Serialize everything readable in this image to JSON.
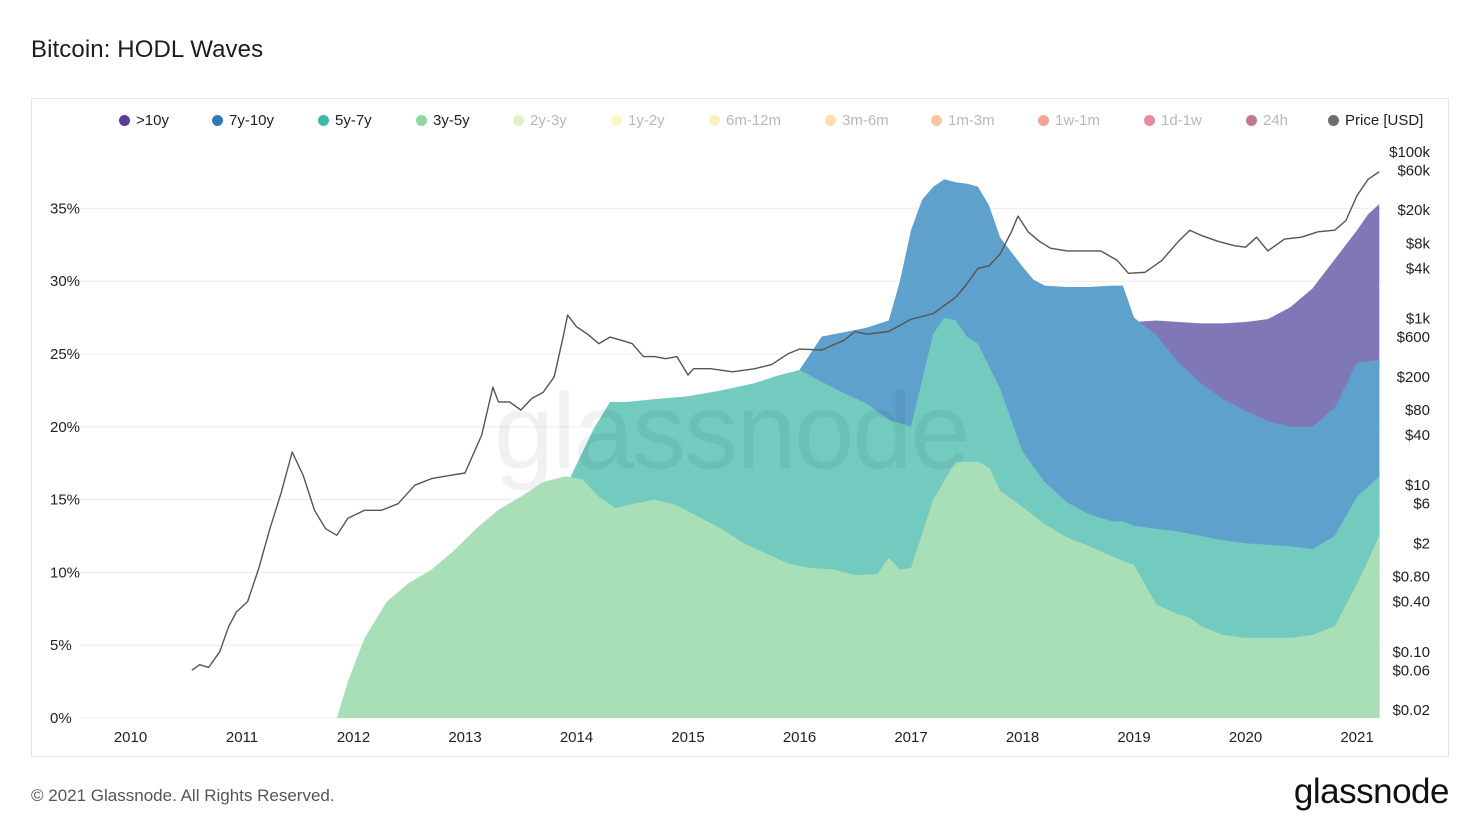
{
  "title": "Bitcoin: HODL Waves",
  "footer": {
    "copyright": "© 2021 Glassnode. All Rights Reserved.",
    "logo": "glassnode"
  },
  "watermark": "glassnode",
  "legend": [
    {
      "label": ">10y",
      "color": "#5b3c98",
      "active": true
    },
    {
      "label": "7y-10y",
      "color": "#2e7bb6",
      "active": true
    },
    {
      "label": "5y-7y",
      "color": "#3fb8a8",
      "active": true
    },
    {
      "label": "3y-5y",
      "color": "#8fd8a0",
      "active": true
    },
    {
      "label": "2y-3y",
      "color": "#c6e88e",
      "active": false
    },
    {
      "label": "1y-2y",
      "color": "#f6f39a",
      "active": false
    },
    {
      "label": "6m-12m",
      "color": "#f9e48e",
      "active": false
    },
    {
      "label": "3m-6m",
      "color": "#f7c56c",
      "active": false
    },
    {
      "label": "1m-3m",
      "color": "#f29955",
      "active": false
    },
    {
      "label": "1w-1m",
      "color": "#e4593f",
      "active": false
    },
    {
      "label": "1d-1w",
      "color": "#cf2d4f",
      "active": false
    },
    {
      "label": "24h",
      "color": "#8e0b2b",
      "active": false
    },
    {
      "label": "Price [USD]",
      "color": "#6e6e6e",
      "active": true
    }
  ],
  "chart_data": {
    "type": "area",
    "title": "Bitcoin: HODL Waves",
    "stacked": true,
    "x_ticks": [
      "2010",
      "2011",
      "2012",
      "2013",
      "2014",
      "2015",
      "2016",
      "2017",
      "2018",
      "2019",
      "2020",
      "2021"
    ],
    "y_ticks": [
      "0%",
      "5%",
      "10%",
      "15%",
      "20%",
      "25%",
      "30%",
      "35%"
    ],
    "ylim": [
      0,
      38
    ],
    "xlim": [
      2009.8,
      2021.25
    ],
    "y2_ticks": [
      "$100k",
      "$60k",
      "$20k",
      "$8k",
      "$4k",
      "$1k",
      "$600",
      "$200",
      "$80",
      "$40",
      "$10",
      "$6",
      "$2",
      "$0.80",
      "$0.40",
      "$0.10",
      "$0.06",
      "$0.02"
    ],
    "y2_values": [
      100000,
      60000,
      20000,
      8000,
      4000,
      1000,
      600,
      200,
      80,
      40,
      10,
      6,
      2,
      0.8,
      0.4,
      0.1,
      0.06,
      0.02
    ],
    "y2_scale": "log",
    "y2lim": [
      0.02,
      100000
    ],
    "grid": true,
    "legend_position": "top",
    "series": [
      {
        "name": "3y-5y",
        "color": "#a9dfb7",
        "x": [
          2011.85,
          2011.95,
          2012.1,
          2012.3,
          2012.5,
          2012.7,
          2012.9,
          2013.1,
          2013.3,
          2013.5,
          2013.7,
          2013.9,
          2014.05,
          2014.2,
          2014.35,
          2014.5,
          2014.7,
          2014.9,
          2015.1,
          2015.3,
          2015.5,
          2015.7,
          2015.9,
          2016.1,
          2016.3,
          2016.5,
          2016.7,
          2016.8,
          2016.9,
          2017.0,
          2017.2,
          2017.4,
          2017.6,
          2017.7,
          2017.8,
          2018.0,
          2018.2,
          2018.4,
          2018.6,
          2018.8,
          2018.9,
          2019.0,
          2019.2,
          2019.4,
          2019.5,
          2019.6,
          2019.8,
          2020.0,
          2020.2,
          2020.4,
          2020.6,
          2020.8,
          2021.0,
          2021.2
        ],
        "values": [
          0,
          2.5,
          5.5,
          8,
          9.3,
          10.2,
          11.5,
          13,
          14.3,
          15.2,
          16.2,
          16.6,
          16.4,
          15.2,
          14.4,
          14.7,
          15,
          14.6,
          13.8,
          13,
          12,
          11.3,
          10.6,
          10.3,
          10.2,
          9.8,
          9.9,
          11,
          10.2,
          10.3,
          15,
          17.6,
          17.6,
          17.2,
          15.6,
          14.5,
          13.3,
          12.4,
          11.8,
          11.1,
          10.8,
          10.5,
          7.8,
          7.1,
          6.9,
          6.3,
          5.7,
          5.5,
          5.5,
          5.5,
          5.7,
          6.3,
          9.2,
          12.5
        ]
      },
      {
        "name": "5y-7y",
        "color": "#73cbbf",
        "x": [
          2013.95,
          2014.15,
          2014.3,
          2014.45,
          2014.7,
          2015.0,
          2015.3,
          2015.6,
          2015.8,
          2016.0,
          2016.2,
          2016.4,
          2016.6,
          2016.8,
          2017.0,
          2017.1,
          2017.2,
          2017.3,
          2017.4,
          2017.5,
          2017.6,
          2017.8,
          2018.0,
          2018.2,
          2018.4,
          2018.6,
          2018.8,
          2018.9,
          2019.0,
          2019.2,
          2019.4,
          2019.6,
          2019.8,
          2020.0,
          2020.2,
          2020.4,
          2020.6,
          2020.8,
          2021.0,
          2021.2
        ],
        "values": [
          16.6,
          19.8,
          21.7,
          21.7,
          21.9,
          22.1,
          22.5,
          23.0,
          23.5,
          23.9,
          23.1,
          22.3,
          21.6,
          20.5,
          20.0,
          23.2,
          26.4,
          27.5,
          27.3,
          26.2,
          25.7,
          22.6,
          18.3,
          16.2,
          14.8,
          14.0,
          13.5,
          13.5,
          13.2,
          13.0,
          12.8,
          12.5,
          12.2,
          12.0,
          11.9,
          11.8,
          11.6,
          12.5,
          15.2,
          16.6
        ]
      },
      {
        "name": "7y-10y",
        "color": "#5ea1cc",
        "x": [
          2016.0,
          2016.2,
          2016.4,
          2016.6,
          2016.8,
          2016.9,
          2017.0,
          2017.1,
          2017.2,
          2017.3,
          2017.4,
          2017.5,
          2017.6,
          2017.7,
          2017.8,
          2018.0,
          2018.1,
          2018.2,
          2018.4,
          2018.6,
          2018.8,
          2018.9,
          2019.0,
          2019.2,
          2019.4,
          2019.6,
          2019.8,
          2020.0,
          2020.2,
          2020.4,
          2020.6,
          2020.8,
          2021.0,
          2021.2
        ],
        "values": [
          23.9,
          26.2,
          26.5,
          26.8,
          27.3,
          30.0,
          33.5,
          35.6,
          36.5,
          37.0,
          36.8,
          36.7,
          36.5,
          35.2,
          33.0,
          31.0,
          30.1,
          29.7,
          29.6,
          29.6,
          29.7,
          29.7,
          27.5,
          26.3,
          24.4,
          23.0,
          21.9,
          21.1,
          20.4,
          20.0,
          20.0,
          21.3,
          24.4,
          24.6
        ]
      },
      {
        "name": ">10y",
        "color": "#8078b6",
        "x": [
          2019.0,
          2019.2,
          2019.4,
          2019.6,
          2019.8,
          2020.0,
          2020.2,
          2020.4,
          2020.6,
          2020.8,
          2021.0,
          2021.1,
          2021.2
        ],
        "values": [
          27.2,
          27.3,
          27.2,
          27.1,
          27.1,
          27.2,
          27.4,
          28.2,
          29.5,
          31.5,
          33.5,
          34.6,
          35.3
        ]
      }
    ],
    "price_series": {
      "name": "Price [USD]",
      "color": "#555555",
      "x": [
        2010.55,
        2010.62,
        2010.7,
        2010.8,
        2010.88,
        2010.95,
        2011.05,
        2011.15,
        2011.25,
        2011.35,
        2011.45,
        2011.55,
        2011.65,
        2011.75,
        2011.85,
        2011.95,
        2012.1,
        2012.25,
        2012.4,
        2012.55,
        2012.7,
        2012.85,
        2013.0,
        2013.15,
        2013.25,
        2013.3,
        2013.4,
        2013.5,
        2013.6,
        2013.7,
        2013.8,
        2013.88,
        2013.92,
        2014.0,
        2014.1,
        2014.2,
        2014.3,
        2014.4,
        2014.5,
        2014.6,
        2014.7,
        2014.8,
        2014.9,
        2015.0,
        2015.05,
        2015.2,
        2015.4,
        2015.6,
        2015.75,
        2015.9,
        2016.0,
        2016.2,
        2016.4,
        2016.5,
        2016.6,
        2016.8,
        2017.0,
        2017.2,
        2017.4,
        2017.5,
        2017.6,
        2017.7,
        2017.8,
        2017.9,
        2017.96,
        2018.05,
        2018.15,
        2018.25,
        2018.4,
        2018.55,
        2018.7,
        2018.85,
        2018.95,
        2019.1,
        2019.25,
        2019.4,
        2019.5,
        2019.6,
        2019.75,
        2019.9,
        2020.0,
        2020.1,
        2020.2,
        2020.35,
        2020.5,
        2020.65,
        2020.8,
        2020.9,
        2021.0,
        2021.1,
        2021.2
      ],
      "values": [
        0.06,
        0.07,
        0.065,
        0.1,
        0.2,
        0.3,
        0.4,
        1,
        3,
        8,
        25,
        13,
        5,
        3,
        2.5,
        4,
        5,
        5,
        6,
        10,
        12,
        13,
        14,
        40,
        150,
        100,
        100,
        80,
        110,
        130,
        200,
        600,
        1100,
        800,
        650,
        500,
        600,
        550,
        500,
        350,
        350,
        330,
        350,
        210,
        250,
        250,
        230,
        250,
        280,
        380,
        430,
        420,
        550,
        700,
        650,
        700,
        980,
        1150,
        1800,
        2600,
        4000,
        4300,
        6000,
        11000,
        17000,
        11000,
        8500,
        7000,
        6500,
        6500,
        6500,
        5000,
        3500,
        3600,
        5000,
        8500,
        11500,
        10000,
        8500,
        7500,
        7200,
        9500,
        6500,
        9000,
        9500,
        11000,
        11500,
        15000,
        30000,
        47000,
        58000
      ]
    }
  }
}
